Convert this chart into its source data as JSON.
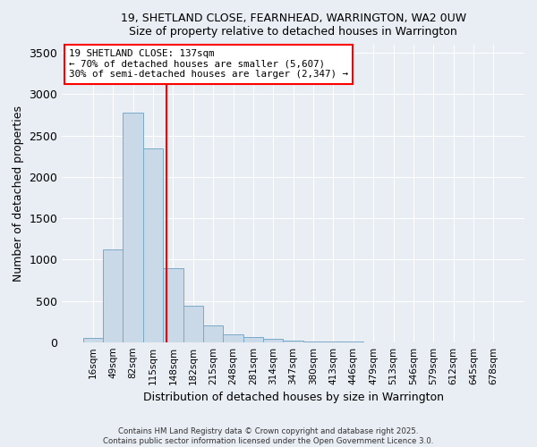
{
  "title1": "19, SHETLAND CLOSE, FEARNHEAD, WARRINGTON, WA2 0UW",
  "title2": "Size of property relative to detached houses in Warrington",
  "xlabel": "Distribution of detached houses by size in Warrington",
  "ylabel": "Number of detached properties",
  "bar_color": "#c9d9e8",
  "bar_edge_color": "#7aaac8",
  "bin_labels": [
    "16sqm",
    "49sqm",
    "82sqm",
    "115sqm",
    "148sqm",
    "182sqm",
    "215sqm",
    "248sqm",
    "281sqm",
    "314sqm",
    "347sqm",
    "380sqm",
    "413sqm",
    "446sqm",
    "479sqm",
    "513sqm",
    "546sqm",
    "579sqm",
    "612sqm",
    "645sqm",
    "678sqm"
  ],
  "values": [
    50,
    1120,
    2780,
    2340,
    900,
    440,
    200,
    95,
    65,
    40,
    18,
    12,
    7,
    4,
    2,
    1,
    1,
    0,
    0,
    0,
    0
  ],
  "annotation_title": "19 SHETLAND CLOSE: 137sqm",
  "annotation_line1": "← 70% of detached houses are smaller (5,607)",
  "annotation_line2": "30% of semi-detached houses are larger (2,347) →",
  "ylim": [
    0,
    3600
  ],
  "yticks": [
    0,
    500,
    1000,
    1500,
    2000,
    2500,
    3000,
    3500
  ],
  "footer1": "Contains HM Land Registry data © Crown copyright and database right 2025.",
  "footer2": "Contains public sector information licensed under the Open Government Licence 3.0.",
  "background_color": "#e8eef4",
  "plot_bg_color": "#e8eef4",
  "grid_color": "#ffffff"
}
